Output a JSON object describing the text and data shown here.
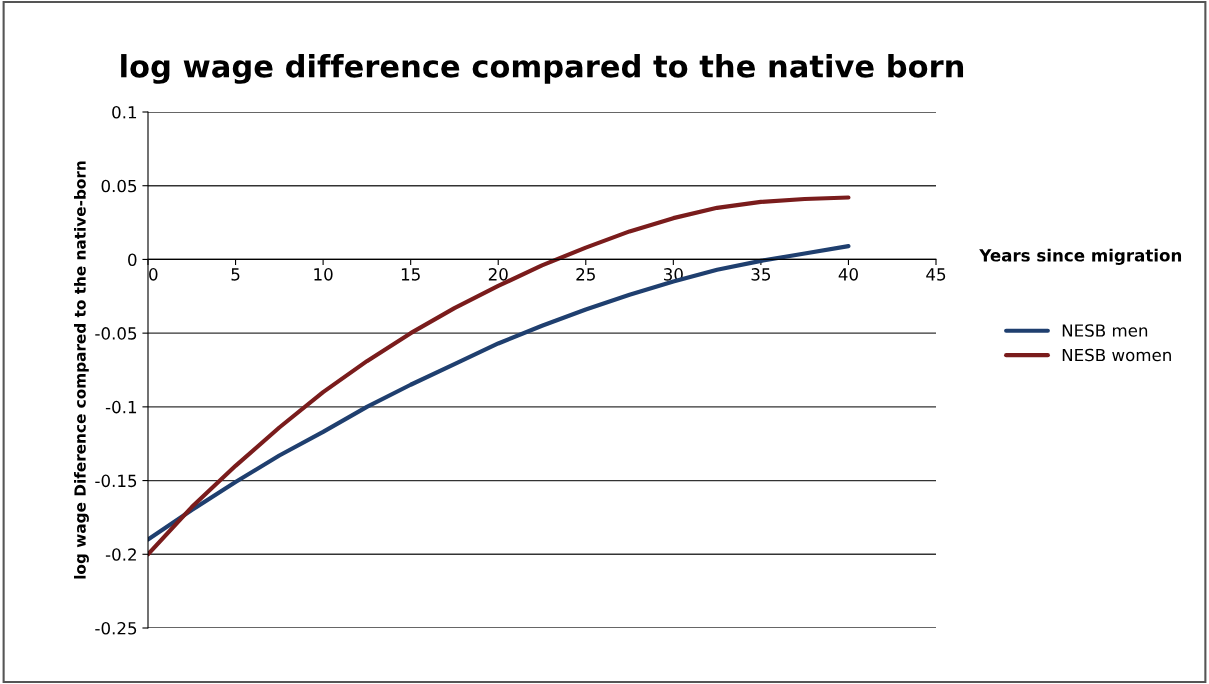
{
  "chart_data": {
    "type": "line",
    "title": "log wage difference compared to the native born",
    "xlabel": "Years since migration",
    "ylabel": "log wage Diference compared to the native-born",
    "x": [
      0,
      2.5,
      5,
      7.5,
      10,
      12.5,
      15,
      17.5,
      20,
      22.5,
      25,
      27.5,
      30,
      32.5,
      35,
      37.5,
      40
    ],
    "series": [
      {
        "name": "NESB men",
        "color": "#1f3f6f",
        "values": [
          -0.19,
          -0.17,
          -0.151,
          -0.133,
          -0.117,
          -0.1,
          -0.085,
          -0.071,
          -0.057,
          -0.045,
          -0.034,
          -0.024,
          -0.015,
          -0.007,
          -0.001,
          0.004,
          0.009
        ]
      },
      {
        "name": "NESB women",
        "color": "#7a1c1c",
        "values": [
          -0.2,
          -0.168,
          -0.14,
          -0.114,
          -0.09,
          -0.069,
          -0.05,
          -0.033,
          -0.018,
          -0.004,
          0.008,
          0.019,
          0.028,
          0.035,
          0.039,
          0.041,
          0.042
        ]
      }
    ],
    "xlim": [
      0,
      45
    ],
    "xticks": [
      0,
      5,
      10,
      15,
      20,
      25,
      30,
      35,
      40,
      45
    ],
    "ylim": [
      -0.25,
      0.1
    ],
    "yticks": [
      -0.25,
      -0.2,
      -0.15,
      -0.1,
      -0.05,
      0,
      0.05,
      0.1
    ],
    "grid": "y",
    "legend": "right",
    "marker": "none",
    "line_style": "solid"
  }
}
